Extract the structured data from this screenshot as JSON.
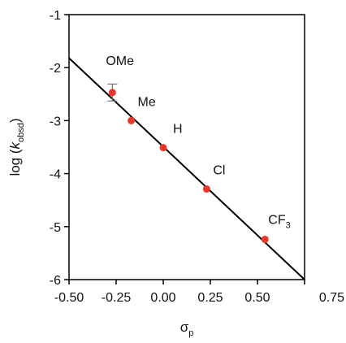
{
  "chart_data": {
    "type": "scatter",
    "xlabel": "σ",
    "xlabel_sub": "p",
    "ylabel_prefix": "log (",
    "ylabel_k": "k",
    "ylabel_sub": "obsd",
    "ylabel_suffix": ")",
    "xlim": [
      -0.5,
      0.75
    ],
    "ylim": [
      -6,
      -1
    ],
    "xticks": [
      "-0.50",
      "-0.25",
      "0.00",
      "0.25",
      "0.50",
      "0.75"
    ],
    "yticks": [
      "-1",
      "-2",
      "-3",
      "-4",
      "-5",
      "-6"
    ],
    "grid": false,
    "legend": "none",
    "series": [
      {
        "points": [
          {
            "label": "OMe",
            "label_sub": "",
            "x": -0.27,
            "y": -2.47,
            "yerr": 0.16
          },
          {
            "label": "Me",
            "label_sub": "",
            "x": -0.17,
            "y": -3.0,
            "yerr": 0
          },
          {
            "label": "H",
            "label_sub": "",
            "x": 0.0,
            "y": -3.51,
            "yerr": 0
          },
          {
            "label": "Cl",
            "label_sub": "",
            "x": 0.23,
            "y": -4.29,
            "yerr": 0
          },
          {
            "label": "CF",
            "label_sub": "3",
            "x": 0.54,
            "y": -5.24,
            "yerr": 0
          }
        ]
      }
    ],
    "fit_line": {
      "x": [
        -0.5,
        0.75
      ],
      "y": [
        -1.82,
        -6.0
      ]
    },
    "colors": {
      "marker": "#e8372c",
      "line": "#000000",
      "axis": "#000000",
      "errorbar": "#777777"
    }
  }
}
